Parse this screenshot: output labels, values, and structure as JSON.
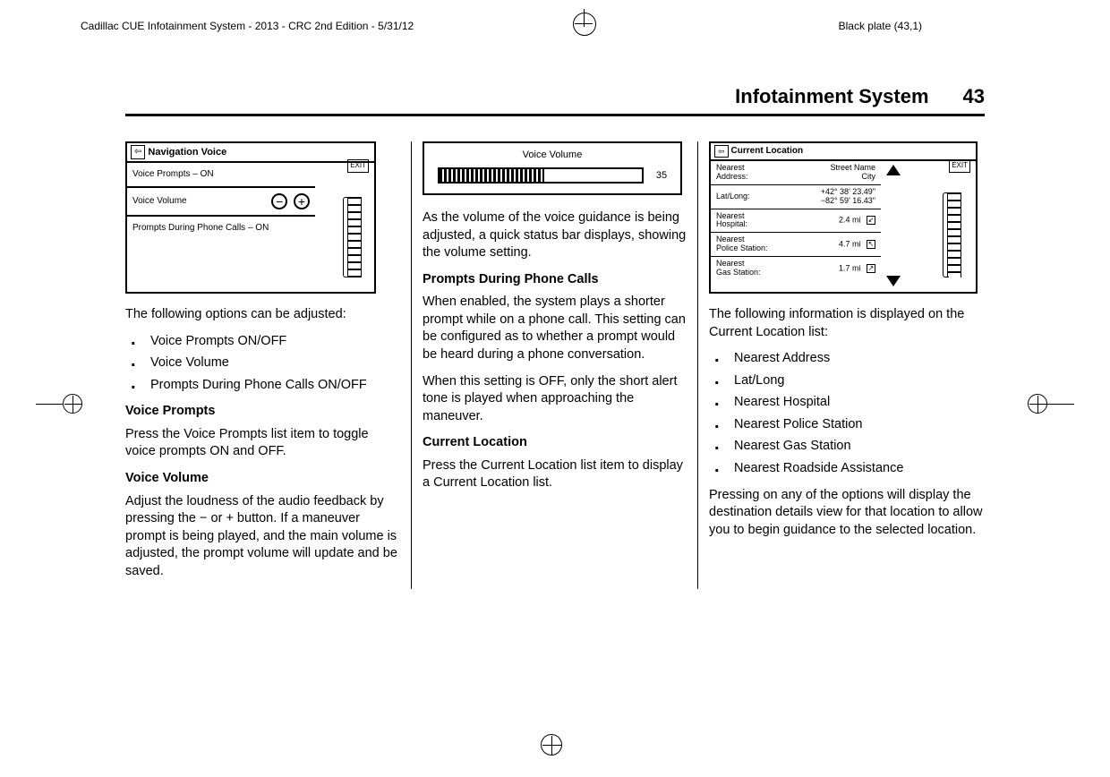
{
  "header": {
    "doc_info": "Cadillac CUE Infotainment System - 2013 - CRC 2nd Edition - 5/31/12",
    "plate": "Black plate (43,1)"
  },
  "page": {
    "title": "Infotainment System",
    "number": "43"
  },
  "fig1": {
    "title": "Navigation Voice",
    "back_glyph": "⇦",
    "exit": "EXIT",
    "row1": "Voice Prompts – ON",
    "row2": "Voice Volume",
    "minus": "−",
    "plus": "+",
    "row3": "Prompts During Phone Calls – ON"
  },
  "col1": {
    "p1": "The following options can be adjusted:",
    "bullets": [
      "Voice Prompts ON/OFF",
      "Voice Volume",
      "Prompts During Phone Calls ON/OFF"
    ],
    "h1": "Voice Prompts",
    "p2": "Press the Voice Prompts list item to toggle voice prompts ON and OFF.",
    "h2": "Voice Volume",
    "p3": "Adjust the loudness of the audio feedback by pressing the − or + button. If a maneuver prompt is being played, and the main volume is adjusted, the prompt volume will update and be saved."
  },
  "fig2": {
    "label": "Voice Volume",
    "value": "35"
  },
  "col2": {
    "p1": "As the volume of the voice guidance is being adjusted, a quick status bar displays, showing the volume setting.",
    "h1": "Prompts During Phone Calls",
    "p2": "When enabled, the system plays a shorter prompt while on a phone call. This setting can be configured as to whether a prompt would be heard during a phone conversation.",
    "p3": "When this setting is OFF, only the short alert tone is played when approaching the maneuver.",
    "h2": "Current Location",
    "p4": "Press the Current Location list item to display a Current Location list."
  },
  "fig3": {
    "title": "Current Location",
    "back_glyph": "⇦",
    "exit": "EXIT",
    "rows": [
      {
        "lbl": "Nearest\nAddress:",
        "val": "Street Name\nCity"
      },
      {
        "lbl": "Lat/Long:",
        "val": "+42° 38' 23.49\"\n−82° 59' 16.43\""
      },
      {
        "lbl": "Nearest\nHospital:",
        "val": "2.4 mi"
      },
      {
        "lbl": "Nearest\nPolice Station:",
        "val": "4.7 mi"
      },
      {
        "lbl": "Nearest\nGas Station:",
        "val": "1.7 mi"
      }
    ]
  },
  "col3": {
    "p1": "The following information is displayed on the Current Location list:",
    "bullets": [
      "Nearest Address",
      "Lat/Long",
      "Nearest Hospital",
      "Nearest Police Station",
      "Nearest Gas Station",
      "Nearest Roadside Assistance"
    ],
    "p2": "Pressing on any of the options will display the destination details view for that location to allow you to begin guidance to the selected location."
  }
}
